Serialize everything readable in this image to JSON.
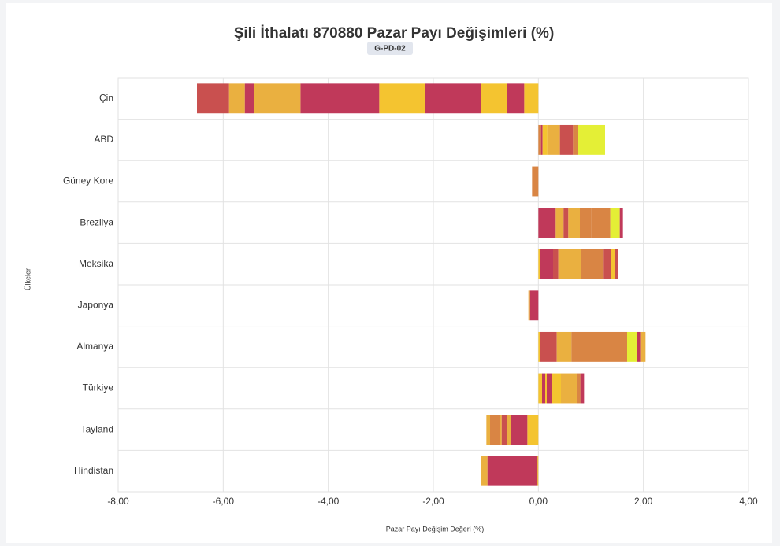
{
  "chart_data": {
    "type": "stacked-bar-horizontal",
    "title": "Şili İthalatı 870880 Pazar Payı Değişimleri (%)",
    "badge": "G-PD-02",
    "x_label": "Pazar Payı Değişim Değeri (%)",
    "y_label": "Ülkeler",
    "categories": [
      "Çin",
      "ABD",
      "Güney Kore",
      "Brezilya",
      "Meksika",
      "Japonya",
      "Almanya",
      "Türkiye",
      "Tayland",
      "Hindistan"
    ],
    "xlim": [
      -8,
      4
    ],
    "xticks": [
      {
        "value": -8,
        "label": "-8,00"
      },
      {
        "value": -6,
        "label": "-6,00"
      },
      {
        "value": -4,
        "label": "-4,00"
      },
      {
        "value": -2,
        "label": "-2,00"
      },
      {
        "value": 0,
        "label": "0,00"
      },
      {
        "value": 2,
        "label": "2,00"
      },
      {
        "value": 4,
        "label": "4,00"
      }
    ],
    "grid": true,
    "stacks": [
      [
        {
          "value": -0.27,
          "color": "#f4c430"
        },
        {
          "value": -0.33,
          "color": "#c0395a"
        },
        {
          "value": -0.49,
          "color": "#f4c430"
        },
        {
          "value": -1.06,
          "color": "#c0395a"
        },
        {
          "value": -0.88,
          "color": "#f4c430"
        },
        {
          "value": -1.5,
          "color": "#c0395a"
        },
        {
          "value": -0.88,
          "color": "#eab040"
        },
        {
          "value": -0.18,
          "color": "#c0395a"
        },
        {
          "value": -0.3,
          "color": "#eab040"
        },
        {
          "value": -0.61,
          "color": "#c9504f"
        }
      ],
      [
        {
          "value": 0.05,
          "color": "#d98544"
        },
        {
          "value": 0.03,
          "color": "#c0395a"
        },
        {
          "value": 0.09,
          "color": "#f4c430"
        },
        {
          "value": 0.24,
          "color": "#eab040"
        },
        {
          "value": 0.25,
          "color": "#c9504f"
        },
        {
          "value": 0.09,
          "color": "#d98544"
        },
        {
          "value": 0.52,
          "color": "#e4ef36"
        }
      ],
      [
        {
          "value": -0.12,
          "color": "#d98544"
        }
      ],
      [
        {
          "value": 0.33,
          "color": "#c0395a"
        },
        {
          "value": 0.15,
          "color": "#eab040"
        },
        {
          "value": 0.09,
          "color": "#c9504f"
        },
        {
          "value": 0.22,
          "color": "#eab040"
        },
        {
          "value": 0.22,
          "color": "#d98544"
        },
        {
          "value": 0.36,
          "color": "#d98544"
        },
        {
          "value": 0.18,
          "color": "#e4ef36"
        },
        {
          "value": 0.06,
          "color": "#c0395a"
        }
      ],
      [
        {
          "value": 0.03,
          "color": "#f4c430"
        },
        {
          "value": 0.25,
          "color": "#c0395a"
        },
        {
          "value": 0.1,
          "color": "#c9504f"
        },
        {
          "value": 0.43,
          "color": "#eab040"
        },
        {
          "value": 0.42,
          "color": "#d98544"
        },
        {
          "value": 0.16,
          "color": "#c9504f"
        },
        {
          "value": 0.07,
          "color": "#f4c430"
        },
        {
          "value": 0.06,
          "color": "#c9504f"
        }
      ],
      [
        {
          "value": -0.16,
          "color": "#c0395a"
        },
        {
          "value": -0.03,
          "color": "#eab040"
        }
      ],
      [
        {
          "value": 0.04,
          "color": "#f4c430"
        },
        {
          "value": 0.31,
          "color": "#c9504f"
        },
        {
          "value": 0.28,
          "color": "#eab040"
        },
        {
          "value": 0.28,
          "color": "#d98544"
        },
        {
          "value": 0.78,
          "color": "#d98544"
        },
        {
          "value": 0.18,
          "color": "#e4ef36"
        },
        {
          "value": 0.07,
          "color": "#c0395a"
        },
        {
          "value": 0.1,
          "color": "#eab040"
        }
      ],
      [
        {
          "value": 0.07,
          "color": "#f4c430"
        },
        {
          "value": 0.06,
          "color": "#c0395a"
        },
        {
          "value": 0.03,
          "color": "#f4c430"
        },
        {
          "value": 0.09,
          "color": "#c0395a"
        },
        {
          "value": 0.18,
          "color": "#f4c430"
        },
        {
          "value": 0.3,
          "color": "#eab040"
        },
        {
          "value": 0.07,
          "color": "#d98544"
        },
        {
          "value": 0.07,
          "color": "#c0395a"
        }
      ],
      [
        {
          "value": -0.21,
          "color": "#f4c430"
        },
        {
          "value": -0.31,
          "color": "#c0395a"
        },
        {
          "value": -0.07,
          "color": "#eab040"
        },
        {
          "value": -0.11,
          "color": "#c9504f"
        },
        {
          "value": -0.04,
          "color": "#eab040"
        },
        {
          "value": -0.18,
          "color": "#d98544"
        },
        {
          "value": -0.07,
          "color": "#eab040"
        }
      ],
      [
        {
          "value": -0.03,
          "color": "#eab040"
        },
        {
          "value": -0.94,
          "color": "#c0395a"
        },
        {
          "value": -0.12,
          "color": "#eab040"
        }
      ]
    ]
  }
}
